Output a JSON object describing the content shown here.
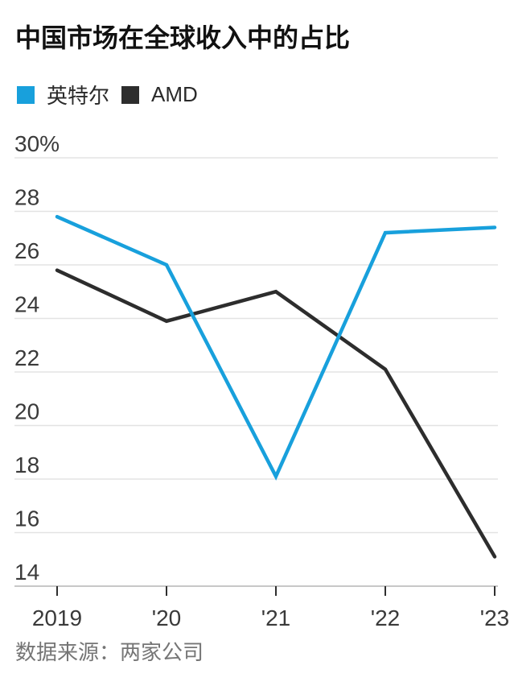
{
  "chart_data": {
    "type": "line",
    "title": "中国市场在全球收入中的占比",
    "categories": [
      "2019",
      "'20",
      "'21",
      "'22",
      "'23"
    ],
    "series": [
      {
        "name": "英特尔",
        "color": "#18A0DC",
        "values": [
          27.8,
          26.0,
          18.1,
          27.2,
          27.4
        ]
      },
      {
        "name": "AMD",
        "color": "#2D2D2D",
        "values": [
          25.8,
          23.9,
          25.0,
          22.1,
          15.1
        ]
      }
    ],
    "xlabel": "",
    "ylabel": "",
    "ylim": [
      14,
      30
    ],
    "y_ticks": [
      30,
      28,
      26,
      24,
      22,
      20,
      18,
      16,
      14
    ],
    "y_tick_labels": [
      "30%",
      "28",
      "26",
      "24",
      "22",
      "20",
      "18",
      "16",
      "14"
    ],
    "grid": true,
    "legend_position": "top-left",
    "source": "数据来源：两家公司"
  },
  "colors": {
    "background": "#FFFFFF",
    "grid": "#E3E3E3",
    "axis": "#C8C8C8",
    "tick": "#2F2F2F",
    "label": "#3A3A3A",
    "title": "#111111",
    "legend_text": "#2A2A2A",
    "source_text": "#757575"
  }
}
